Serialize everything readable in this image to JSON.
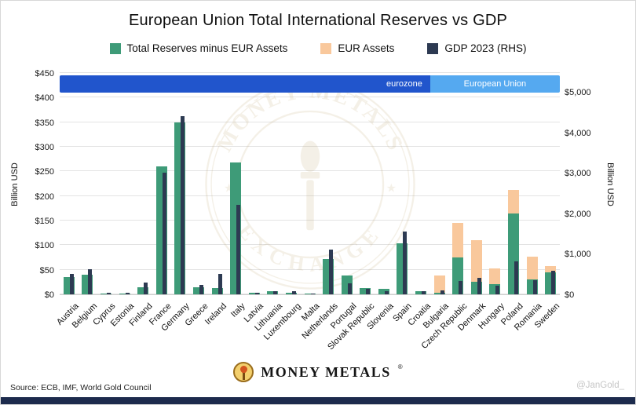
{
  "title": "European Union Total International Reserves vs GDP",
  "legend": [
    {
      "label": "Total Reserves minus EUR Assets",
      "color": "#3E9B78"
    },
    {
      "label": "EUR Assets",
      "color": "#F9C89C"
    },
    {
      "label": "GDP 2023 (RHS)",
      "color": "#2D3A52"
    }
  ],
  "banner": {
    "eurozone_label": "eurozone",
    "eu_label": "European Union",
    "eurozone_color": "#2155CC",
    "eu_color": "#55A9F0",
    "eurozone_count": 20
  },
  "axes": {
    "left_label": "Billion USD",
    "right_label": "Billion USD",
    "left_ticks": [
      "$0",
      "$50",
      "$100",
      "$150",
      "$200",
      "$250",
      "$300",
      "$350",
      "$400",
      "$450"
    ],
    "right_ticks": [
      "$0",
      "$1,000",
      "$2,000",
      "$3,000",
      "$4,000",
      "$5,000"
    ],
    "left_max": 450,
    "right_max": 5000
  },
  "chart_data": {
    "type": "bar",
    "title": "European Union Total International Reserves vs GDP",
    "xlabel": "",
    "ylabel_left": "Billion USD",
    "ylabel_right": "Billion USD",
    "ylim_left": [
      0,
      450
    ],
    "ylim_right": [
      0,
      5000
    ],
    "grid": "horizontal",
    "legend_position": "top",
    "categories": [
      "Austria",
      "Belgium",
      "Cyprus",
      "Estonia",
      "Finland",
      "France",
      "Germany",
      "Greece",
      "Ireland",
      "Italy",
      "Latvia",
      "Lithuania",
      "Luxembourg",
      "Malta",
      "Netherlands",
      "Portugal",
      "Slovak Republic",
      "Slovenia",
      "Spain",
      "Croatia",
      "Bulgaria",
      "Czech Republic",
      "Denmark",
      "Hungary",
      "Poland",
      "Romania",
      "Sweden"
    ],
    "series": [
      {
        "name": "Total Reserves minus EUR Assets",
        "axis": "left",
        "color": "#3E9B78",
        "stack": "reserves",
        "values": [
          35,
          40,
          2,
          2,
          15,
          260,
          350,
          15,
          12,
          268,
          4,
          6,
          4,
          2,
          72,
          38,
          12,
          11,
          104,
          6,
          3,
          75,
          25,
          20,
          165,
          30,
          45
        ]
      },
      {
        "name": "EUR Assets",
        "axis": "left",
        "color": "#F9C89C",
        "stack": "reserves",
        "values": [
          0,
          0,
          0,
          0,
          0,
          0,
          0,
          0,
          0,
          0,
          0,
          0,
          0,
          0,
          0,
          0,
          0,
          0,
          0,
          0,
          35,
          70,
          85,
          32,
          48,
          47,
          13
        ]
      },
      {
        "name": "GDP 2023 (RHS)",
        "axis": "right",
        "color": "#2D3A52",
        "stack": "gdp",
        "values": [
          500,
          630,
          32,
          41,
          300,
          3000,
          4400,
          240,
          500,
          2200,
          46,
          80,
          86,
          21,
          1100,
          280,
          130,
          70,
          1550,
          84,
          100,
          330,
          400,
          210,
          810,
          350,
          590
        ]
      }
    ]
  },
  "watermark": {
    "top": "MONEY METALS",
    "bottom": "EXCHANGE",
    "star": "★"
  },
  "footer": {
    "source": "Source: ECB, IMF, World Gold Council",
    "brand": "MONEY METALS",
    "brand_mark": "®",
    "handle": "@JanGold_"
  }
}
